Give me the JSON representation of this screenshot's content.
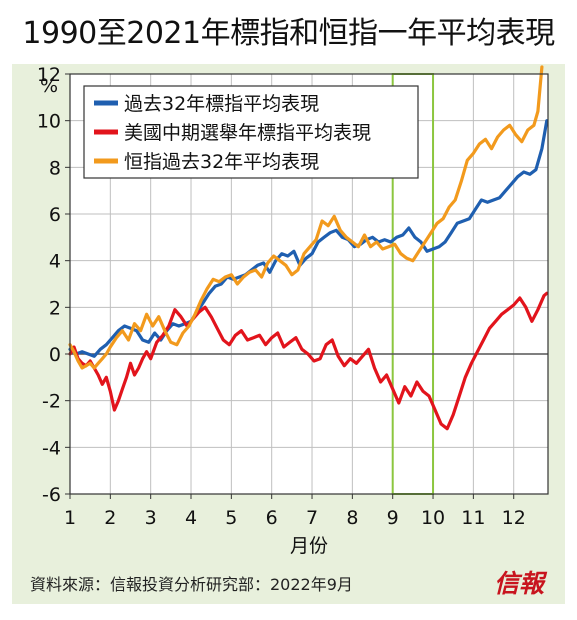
{
  "title": "1990至2021年標指和恒指一年平均表現",
  "source": "資料來源：信報投資分析研究部：2022年9月",
  "logo_text": "信報",
  "chart_data": {
    "type": "line",
    "title": "1990至2021年標指和恒指一年平均表現",
    "ylabel": "%",
    "xlabel": "月份",
    "xlim": [
      1,
      12.85
    ],
    "ylim": [
      -6,
      12
    ],
    "x_ticks": [
      1,
      2,
      3,
      4,
      5,
      6,
      7,
      8,
      9,
      10,
      11,
      12
    ],
    "x_tick_labels": [
      "1",
      "2",
      "3",
      "4",
      "5",
      "6",
      "7",
      "8",
      "9",
      "10",
      "11",
      "12"
    ],
    "y_ticks": [
      -6,
      -4,
      -2,
      0,
      2,
      4,
      6,
      8,
      10,
      12
    ],
    "y_tick_labels": [
      "-6",
      "-4",
      "-2",
      "0",
      "2",
      "4",
      "6",
      "8",
      "10",
      "12"
    ],
    "grid": true,
    "legend_position": "top-left",
    "highlight_band": {
      "from": 9,
      "to": 10,
      "color": "#8cc63f"
    },
    "colors": {
      "zero_line": "#555555",
      "grid": "#bfbfbf",
      "plot_bg": "#ffffff"
    },
    "series": [
      {
        "name": "過去32年標指平均表現",
        "color": "#1f5fb0",
        "x": [
          1.0,
          1.15,
          1.3,
          1.45,
          1.6,
          1.75,
          1.9,
          2.05,
          2.2,
          2.35,
          2.5,
          2.65,
          2.8,
          2.95,
          3.1,
          3.25,
          3.4,
          3.55,
          3.7,
          3.85,
          4.0,
          4.15,
          4.3,
          4.45,
          4.6,
          4.75,
          4.9,
          5.05,
          5.2,
          5.35,
          5.5,
          5.65,
          5.8,
          5.95,
          6.1,
          6.25,
          6.4,
          6.55,
          6.7,
          6.85,
          7.0,
          7.15,
          7.3,
          7.45,
          7.6,
          7.75,
          7.9,
          8.05,
          8.2,
          8.35,
          8.5,
          8.65,
          8.8,
          8.95,
          9.1,
          9.25,
          9.4,
          9.55,
          9.7,
          9.85,
          10.0,
          10.15,
          10.3,
          10.45,
          10.6,
          10.75,
          10.9,
          11.05,
          11.2,
          11.35,
          11.5,
          11.65,
          11.8,
          11.95,
          12.1,
          12.25,
          12.4,
          12.55,
          12.7,
          12.82
        ],
        "values": [
          0.2,
          0.0,
          0.1,
          0.0,
          -0.1,
          0.2,
          0.4,
          0.7,
          1.0,
          1.2,
          1.1,
          1.0,
          0.6,
          0.5,
          0.9,
          0.6,
          1.0,
          1.3,
          1.2,
          1.3,
          1.4,
          1.8,
          2.2,
          2.6,
          2.9,
          3.0,
          3.3,
          3.2,
          3.3,
          3.4,
          3.6,
          3.8,
          3.9,
          3.5,
          4.0,
          4.3,
          4.2,
          4.4,
          3.8,
          4.1,
          4.3,
          4.8,
          5.0,
          5.2,
          5.3,
          5.0,
          4.9,
          4.6,
          4.7,
          4.9,
          5.0,
          4.8,
          4.9,
          4.8,
          5.0,
          5.1,
          5.4,
          5.0,
          4.8,
          4.4,
          4.5,
          4.6,
          4.8,
          5.2,
          5.6,
          5.7,
          5.8,
          6.2,
          6.6,
          6.5,
          6.6,
          6.7,
          7.0,
          7.3,
          7.6,
          7.8,
          7.7,
          7.9,
          8.8,
          10.0
        ]
      },
      {
        "name": "美國中期選舉年標指平均表現",
        "color": "#e2141c",
        "x": [
          1.0,
          1.1,
          1.2,
          1.3,
          1.4,
          1.5,
          1.6,
          1.7,
          1.8,
          1.9,
          2.0,
          2.1,
          2.2,
          2.3,
          2.4,
          2.5,
          2.6,
          2.7,
          2.8,
          2.9,
          3.0,
          3.15,
          3.3,
          3.45,
          3.6,
          3.75,
          3.9,
          4.05,
          4.2,
          4.35,
          4.5,
          4.65,
          4.8,
          4.95,
          5.1,
          5.25,
          5.4,
          5.55,
          5.7,
          5.85,
          6.0,
          6.15,
          6.3,
          6.45,
          6.6,
          6.75,
          6.9,
          7.05,
          7.2,
          7.35,
          7.5,
          7.65,
          7.8,
          7.95,
          8.1,
          8.25,
          8.4,
          8.55,
          8.7,
          8.85,
          9.0,
          9.15,
          9.3,
          9.45,
          9.6,
          9.75,
          9.9,
          10.05,
          10.2,
          10.35,
          10.5,
          10.65,
          10.8,
          10.95,
          11.1,
          11.25,
          11.4,
          11.55,
          11.7,
          11.85,
          12.0,
          12.15,
          12.3,
          12.45,
          12.6,
          12.75,
          12.82
        ],
        "values": [
          0.0,
          0.3,
          -0.2,
          -0.4,
          -0.5,
          -0.3,
          -0.6,
          -0.9,
          -1.3,
          -1.0,
          -1.6,
          -2.4,
          -2.0,
          -1.5,
          -1.0,
          -0.4,
          -0.9,
          -0.6,
          -0.2,
          0.1,
          -0.2,
          0.5,
          0.8,
          1.2,
          1.9,
          1.6,
          1.2,
          1.5,
          1.8,
          2.0,
          1.6,
          1.1,
          0.6,
          0.4,
          0.8,
          1.0,
          0.6,
          0.7,
          0.8,
          0.4,
          0.7,
          0.9,
          0.3,
          0.5,
          0.7,
          0.2,
          0.0,
          -0.3,
          -0.2,
          0.4,
          0.6,
          -0.1,
          -0.5,
          -0.2,
          -0.4,
          -0.1,
          0.2,
          -0.6,
          -1.2,
          -0.9,
          -1.5,
          -2.1,
          -1.4,
          -1.8,
          -1.2,
          -1.6,
          -1.8,
          -2.4,
          -3.0,
          -3.2,
          -2.6,
          -1.8,
          -1.0,
          -0.4,
          0.1,
          0.6,
          1.1,
          1.4,
          1.7,
          1.9,
          2.1,
          2.4,
          2.0,
          1.4,
          1.9,
          2.5,
          2.6
        ]
      },
      {
        "name": "恒指過去32年平均表現",
        "color": "#f29a1d",
        "x": [
          1.0,
          1.1,
          1.2,
          1.3,
          1.4,
          1.5,
          1.6,
          1.7,
          1.8,
          1.9,
          2.0,
          2.15,
          2.3,
          2.45,
          2.6,
          2.75,
          2.9,
          3.05,
          3.2,
          3.35,
          3.5,
          3.65,
          3.8,
          3.95,
          4.1,
          4.25,
          4.4,
          4.55,
          4.7,
          4.85,
          5.0,
          5.15,
          5.3,
          5.45,
          5.6,
          5.75,
          5.9,
          6.05,
          6.2,
          6.35,
          6.5,
          6.65,
          6.8,
          6.95,
          7.1,
          7.25,
          7.4,
          7.55,
          7.7,
          7.85,
          8.0,
          8.15,
          8.3,
          8.45,
          8.6,
          8.75,
          8.9,
          9.05,
          9.2,
          9.35,
          9.5,
          9.65,
          9.8,
          9.95,
          10.1,
          10.25,
          10.4,
          10.55,
          10.7,
          10.85,
          11.0,
          11.15,
          11.3,
          11.45,
          11.6,
          11.75,
          11.9,
          12.05,
          12.2,
          12.35,
          12.5,
          12.6,
          12.7
        ],
        "values": [
          0.4,
          0.1,
          -0.3,
          -0.6,
          -0.5,
          -0.4,
          -0.6,
          -0.4,
          -0.2,
          0.0,
          0.3,
          0.7,
          1.0,
          0.6,
          1.3,
          1.0,
          1.7,
          1.2,
          1.6,
          1.0,
          0.5,
          0.4,
          0.9,
          1.2,
          1.7,
          2.3,
          2.8,
          3.2,
          3.1,
          3.3,
          3.4,
          3.0,
          3.3,
          3.5,
          3.6,
          3.3,
          3.9,
          4.2,
          4.0,
          3.8,
          3.4,
          3.6,
          4.3,
          4.6,
          4.9,
          5.7,
          5.5,
          5.9,
          5.3,
          5.0,
          4.8,
          4.6,
          5.1,
          4.6,
          4.8,
          4.5,
          4.6,
          4.7,
          4.3,
          4.1,
          4.0,
          4.4,
          4.8,
          5.2,
          5.6,
          5.8,
          6.3,
          6.6,
          7.4,
          8.3,
          8.6,
          9.0,
          9.2,
          8.8,
          9.3,
          9.6,
          9.8,
          9.4,
          9.1,
          9.6,
          9.8,
          10.4,
          12.3
        ]
      }
    ]
  }
}
